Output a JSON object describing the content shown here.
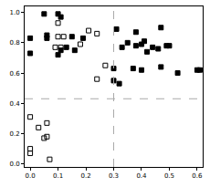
{
  "chart_data": {
    "type": "scatter",
    "xlim": [
      -0.02,
      0.62
    ],
    "ylim": [
      -0.02,
      1.04
    ],
    "xticks": [
      {
        "value": 0,
        "label": "0.0"
      },
      {
        "value": 0.1,
        "label": "0.1"
      },
      {
        "value": 0.2,
        "label": "0.2"
      },
      {
        "value": 0.3,
        "label": "0.3"
      },
      {
        "value": 0.4,
        "label": "0.4"
      },
      {
        "value": 0.5,
        "label": "0.5"
      },
      {
        "value": 0.6,
        "label": "0.6"
      }
    ],
    "yticks": [
      {
        "value": 0,
        "label": "0.0"
      },
      {
        "value": 0.2,
        "label": "0.2"
      },
      {
        "value": 0.4,
        "label": "0.4"
      },
      {
        "value": 0.6,
        "label": "0.6"
      },
      {
        "value": 0.8,
        "label": "0.8"
      },
      {
        "value": 1,
        "label": "1.0"
      }
    ],
    "grid": false,
    "series": [
      {
        "type": "scatter",
        "color": "#000000",
        "marker": "square",
        "x": [
          0.0,
          0.0,
          0.05,
          0.06,
          0.06,
          0.1,
          0.11,
          0.1,
          0.11,
          0.13,
          0.15,
          0.16,
          0.19,
          0.3,
          0.3,
          0.31,
          0.32,
          0.33,
          0.35,
          0.37,
          0.38,
          0.38,
          0.4,
          0.4,
          0.41,
          0.42,
          0.44,
          0.46,
          0.47,
          0.47,
          0.49,
          0.5,
          0.53,
          0.6,
          0.61
        ],
        "values": [
          0.83,
          0.73,
          0.99,
          0.85,
          0.83,
          0.99,
          0.97,
          0.72,
          0.75,
          0.77,
          0.84,
          0.75,
          0.83,
          0.55,
          0.63,
          0.89,
          0.53,
          0.77,
          0.8,
          0.63,
          0.87,
          0.78,
          0.79,
          0.62,
          0.81,
          0.74,
          0.77,
          0.76,
          0.9,
          0.64,
          0.78,
          0.78,
          0.6,
          0.62,
          0.62
        ]
      },
      {
        "type": "scatter",
        "color": "#000000",
        "marker": "square-open",
        "x": [
          0.0,
          0.0,
          0.0,
          0.03,
          0.05,
          0.06,
          0.06,
          0.07,
          0.09,
          0.1,
          0.1,
          0.11,
          0.12,
          0.18,
          0.21,
          0.24,
          0.24,
          0.27
        ],
        "values": [
          0.31,
          0.1,
          0.07,
          0.24,
          0.17,
          0.27,
          0.18,
          0.03,
          0.77,
          0.93,
          0.84,
          0.77,
          0.84,
          0.79,
          0.88,
          0.56,
          0.86,
          0.65
        ]
      },
      {
        "type": "line",
        "color": "#aaaaaa",
        "line_style": "dashed",
        "x": [
          0.3,
          0.3
        ],
        "values": [
          -0.02,
          1.04
        ]
      },
      {
        "type": "line",
        "color": "#aaaaaa",
        "line_style": "dashed",
        "x": [
          -0.02,
          0.62
        ],
        "values": [
          0.43,
          0.43
        ]
      }
    ]
  }
}
